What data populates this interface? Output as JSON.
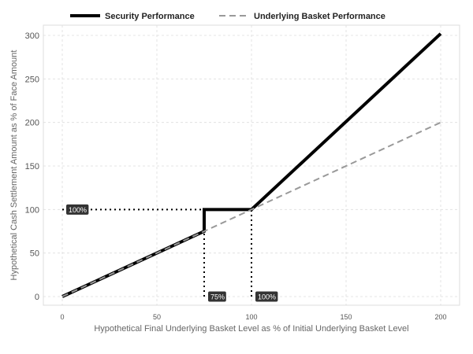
{
  "chart_data": {
    "type": "line",
    "xlabel": "Hypothetical Final Underlying Basket Level as % of Initial Underlying Basket Level",
    "ylabel": "Hypothetical Cash Settlement Amount as % of Face Amount",
    "xlim": [
      0,
      200
    ],
    "ylim": [
      0,
      300
    ],
    "x_ticks": [
      0,
      50,
      100,
      150,
      200
    ],
    "y_ticks": [
      0,
      50,
      100,
      150,
      200,
      250,
      300
    ],
    "grid": true,
    "legend_position": "top",
    "series": [
      {
        "name": "Security Performance",
        "style": "solid",
        "color": "#000000",
        "x": [
          0,
          75,
          75,
          100,
          200
        ],
        "y": [
          0,
          75,
          100,
          100,
          302
        ]
      },
      {
        "name": "Underlying Basket Performance",
        "style": "dashed",
        "color": "#999999",
        "x": [
          0,
          200
        ],
        "y": [
          0,
          200
        ]
      }
    ],
    "reference_lines": [
      {
        "x": [
          0,
          100
        ],
        "y": [
          100,
          100
        ]
      },
      {
        "x": [
          75,
          75
        ],
        "y": [
          0,
          75
        ]
      },
      {
        "x": [
          100,
          100
        ],
        "y": [
          0,
          100
        ]
      }
    ],
    "annotations": [
      {
        "text": "100%",
        "x": 0,
        "y": 100
      },
      {
        "text": "75%",
        "x": 75,
        "y": 0
      },
      {
        "text": "100%",
        "x": 100,
        "y": 0
      }
    ]
  }
}
